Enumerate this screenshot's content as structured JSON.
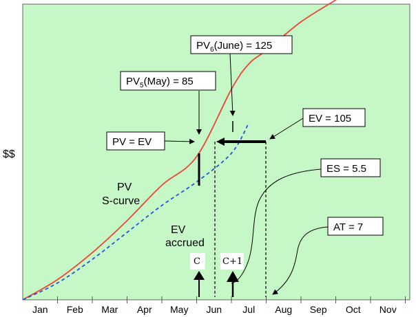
{
  "chart_data": {
    "type": "line",
    "ylabel": "$$",
    "categories": [
      "Jan",
      "Feb",
      "Mar",
      "Apr",
      "May",
      "Jun",
      "Jul",
      "Aug",
      "Sep",
      "Oct",
      "Nov"
    ],
    "series": [
      {
        "name": "PV S-curve",
        "style": "solid",
        "color": "#ee4433",
        "points": [
          [
            0,
            0
          ],
          [
            1,
            12
          ],
          [
            2,
            28
          ],
          [
            3,
            47
          ],
          [
            4,
            68
          ],
          [
            5,
            85
          ],
          [
            6,
            125
          ],
          [
            6.5,
            140
          ],
          [
            7,
            148
          ],
          [
            8,
            165
          ],
          [
            9,
            178
          ],
          [
            9.5,
            185
          ]
        ]
      },
      {
        "name": "EV accrued",
        "style": "dashed",
        "color": "#2255dd",
        "points": [
          [
            0,
            0
          ],
          [
            1,
            10
          ],
          [
            2,
            24
          ],
          [
            3,
            40
          ],
          [
            4,
            56
          ],
          [
            5,
            70
          ],
          [
            6,
            87
          ],
          [
            6.5,
            105
          ]
        ]
      }
    ],
    "annotations": {
      "pv6": {
        "prefix": "PV",
        "sub": "6",
        "suffix": "(June) = 125"
      },
      "pv5": {
        "prefix": "PV",
        "sub": "5",
        "suffix": "(May) = 85"
      },
      "pv_eq_ev": "PV = EV",
      "ev": "EV = 105",
      "es": "ES = 5.5",
      "at": "AT = 7",
      "pv_curve_line1": "PV",
      "pv_curve_line2": "S-curve",
      "ev_line1": "EV",
      "ev_line2": "accrued",
      "c": "C",
      "c_plus_1": "C+1"
    },
    "background_color": "#c6f7c6"
  }
}
